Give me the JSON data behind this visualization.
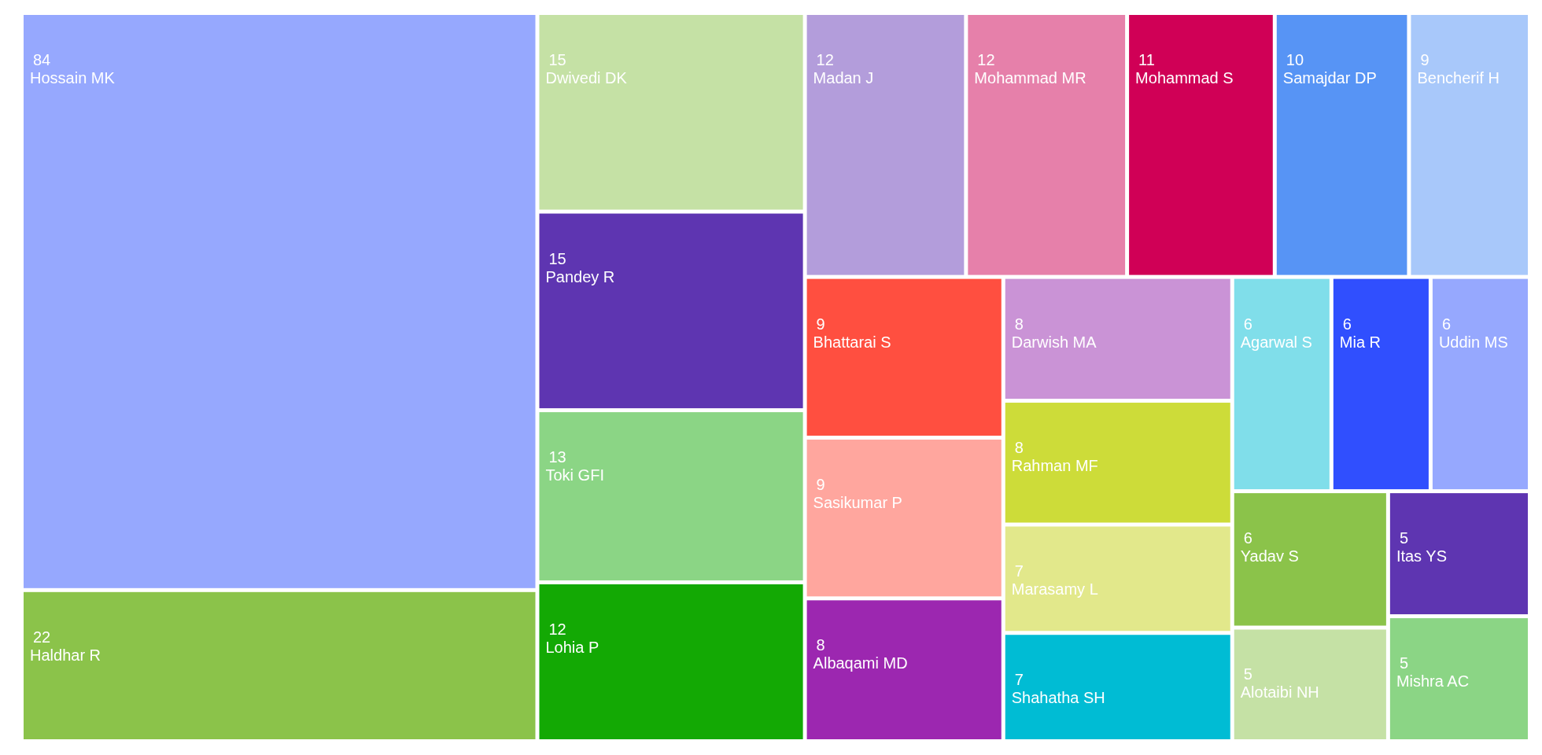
{
  "chart_data": {
    "type": "other",
    "categories": [
      "Hossain MK",
      "Haldhar R",
      "Dwivedi DK",
      "Pandey R",
      "Toki GFI",
      "Lohia P",
      "Madan J",
      "Mohammad MR",
      "Mohammad S",
      "Samajdar DP",
      "Bencherif H",
      "Bhattarai S",
      "Sasikumar P",
      "Albaqami MD",
      "Darwish MA",
      "Rahman MF",
      "Marasamy L",
      "Shahatha SH",
      "Agarwal S",
      "Mia R",
      "Uddin MS",
      "Yadav S",
      "Alotaibi NH",
      "Itas YS",
      "Mishra AC"
    ],
    "values": [
      84,
      22,
      15,
      15,
      13,
      12,
      12,
      12,
      11,
      10,
      9,
      9,
      9,
      8,
      8,
      8,
      7,
      7,
      6,
      6,
      6,
      6,
      5,
      5,
      5
    ],
    "colors": [
      "#96a8fe",
      "#8bc34a",
      "#c5e1a5",
      "#5e35b1",
      "#8bd585",
      "#13a904",
      "#b39ddb",
      "#e680aa",
      "#d00056",
      "#5794f5",
      "#a8c8fa",
      "#ff4f40",
      "#ffa69e",
      "#9c27b0",
      "#ca93d6",
      "#cddc39",
      "#e2e88b",
      "#00bcd4",
      "#80deea",
      "#304ffe",
      "#96a8fe",
      "#8bc34a",
      "#c5e1a5",
      "#5e35b1",
      "#8bd585"
    ],
    "data_labels": true
  }
}
